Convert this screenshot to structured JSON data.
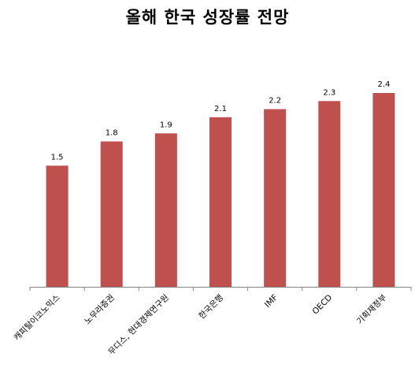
{
  "chart_data": {
    "type": "bar",
    "title": "올해 한국 성장률 전망",
    "xlabel": "",
    "ylabel": "",
    "categories": [
      "캐피탈이코노믹스",
      "노무라증권",
      "무디스, 현대경제연구원",
      "한국은행",
      "IMF",
      "OECD",
      "기획재정부"
    ],
    "values": [
      1.5,
      1.8,
      1.9,
      2.1,
      2.2,
      2.3,
      2.4
    ],
    "value_labels": [
      "1.5",
      "1.8",
      "1.9",
      "2.1",
      "2.2",
      "2.3",
      "2.4"
    ],
    "ylim": [
      0,
      2.5
    ],
    "grid": false,
    "legend": "none",
    "bar_color": "#c0504d",
    "axis_color": "#868686"
  }
}
